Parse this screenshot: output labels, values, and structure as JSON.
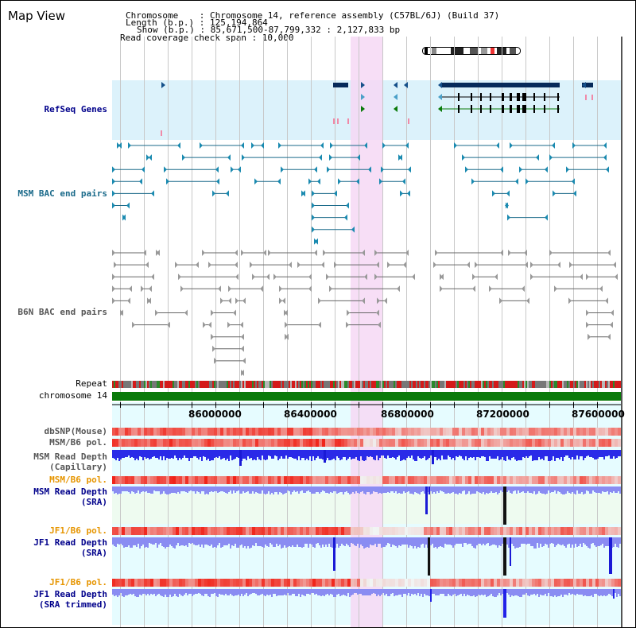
{
  "panel": {
    "title": "Map View"
  },
  "info": {
    "chromosome": "Chromosome    : Chromosome 14, reference assembly (C57BL/6J) (Build 37)",
    "length": "Length (b.p.) : 125,194,864",
    "show": "Show (b.p.) : 85,671,500-87,799,332 : 2,127,833 bp",
    "coverage": "Read coverage check span : 10,000"
  },
  "tracks": {
    "refseq": "RefSeq Genes",
    "msm_bac": "MSM BAC end pairs",
    "b6n_bac": "B6N BAC end pairs",
    "repeat": "Repeat",
    "chromosome": "chromosome 14",
    "dbsnp": "dbSNP(Mouse)",
    "msm_b6_pol": "MSM/B6 pol.",
    "msm_read_depth_cap_1": "MSM Read Depth",
    "msm_read_depth_cap_2": "(Capillary)",
    "msm_b6_pol_sra": "MSM/B6 pol.",
    "msm_read_depth_sra_1": "MSM Read Depth",
    "msm_read_depth_sra_2": "(SRA)",
    "jf1_b6_pol": "JF1/B6 pol.",
    "jf1_read_depth_1": "JF1 Read Depth",
    "jf1_read_depth_2": "(SRA)",
    "jf1_b6_pol_2": "JF1/B6 pol.",
    "jf1_read_depth_trim_1": "JF1 Read Depth",
    "jf1_read_depth_trim_2": "(SRA trimmed)"
  },
  "axis": {
    "ticks": [
      "86000000",
      "86400000",
      "86800000",
      "87200000",
      "87600000"
    ]
  },
  "colors": {
    "highlight": "#f6d8f4",
    "refseq_bg": "#dcf2fb",
    "light_bg": "#e6fcff",
    "chromosome": "#0a7a0a",
    "depth_blue": "#3a3ae6",
    "depth_light": "#8a8cf2",
    "snp_red": "#f04a3a"
  }
}
